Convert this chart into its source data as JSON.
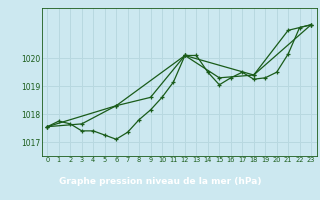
{
  "title": "Graphe pression niveau de la mer (hPa)",
  "bg_color": "#cce8f0",
  "label_bg": "#2d6b2d",
  "label_fg": "#ffffff",
  "grid_color": "#b8d8e0",
  "line_color": "#1a5c1a",
  "xlim": [
    -0.5,
    23.5
  ],
  "ylim": [
    1016.5,
    1021.8
  ],
  "yticks": [
    1017,
    1018,
    1019,
    1020
  ],
  "xticks": [
    0,
    1,
    2,
    3,
    4,
    5,
    6,
    7,
    8,
    9,
    10,
    11,
    12,
    13,
    14,
    15,
    16,
    17,
    18,
    19,
    20,
    21,
    22,
    23
  ],
  "series1_x": [
    0,
    1,
    2,
    3,
    4,
    5,
    6,
    7,
    8,
    9,
    10,
    11,
    12,
    13,
    14,
    15,
    16,
    17,
    18,
    19,
    20,
    21,
    22,
    23
  ],
  "series1_y": [
    1017.55,
    1017.75,
    1017.65,
    1017.4,
    1017.4,
    1017.25,
    1017.1,
    1017.35,
    1017.8,
    1018.15,
    1018.6,
    1019.15,
    1020.1,
    1020.1,
    1019.5,
    1019.05,
    1019.3,
    1019.5,
    1019.25,
    1019.3,
    1019.5,
    1020.15,
    1021.1,
    1021.2
  ],
  "series2_x": [
    0,
    3,
    6,
    9,
    12,
    15,
    18,
    21,
    23
  ],
  "series2_y": [
    1017.55,
    1017.65,
    1018.3,
    1018.6,
    1020.1,
    1019.3,
    1019.4,
    1021.0,
    1021.2
  ],
  "series3_x": [
    0,
    6,
    12,
    18,
    23
  ],
  "series3_y": [
    1017.55,
    1018.3,
    1020.1,
    1019.4,
    1021.2
  ]
}
